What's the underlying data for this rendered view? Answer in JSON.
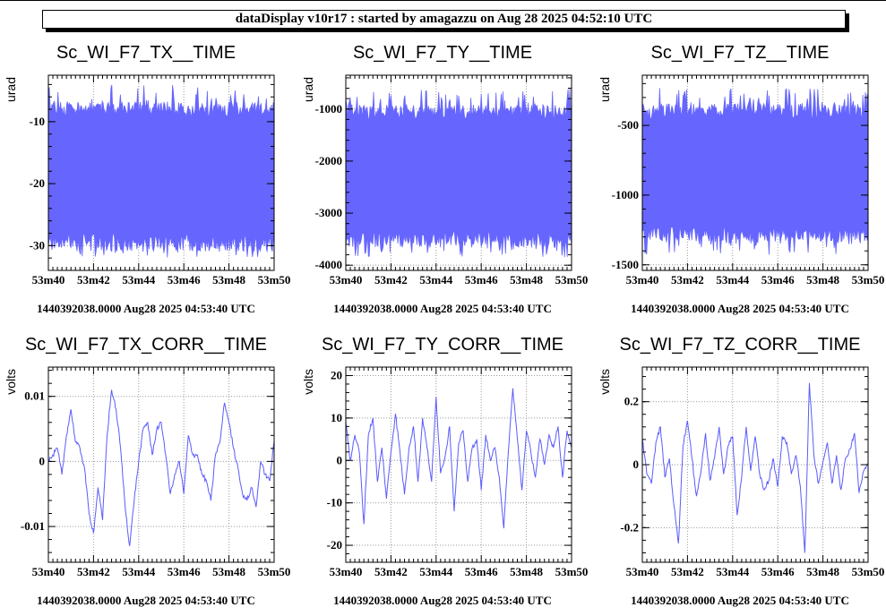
{
  "banner": {
    "text": "dataDisplay v10r17 : started by amagazzu on Aug 28 2025 04:52:10 UTC"
  },
  "colors": {
    "series": "#5b5bfd",
    "band_fill": "#6666ff",
    "grid": "#9a9a9a",
    "frame": "#000000"
  },
  "chart_data": [
    {
      "type": "area",
      "title": "Sc_WI_F7_TX__TIME",
      "ylabel": "urad",
      "xlabel": "",
      "x_tick_labels": [
        "53m40",
        "53m42",
        "53m44",
        "53m46",
        "53m48",
        "53m50"
      ],
      "y_ticks": [
        -30,
        -20,
        -10
      ],
      "y_tick_labels": [
        "-30",
        "-20",
        "-10"
      ],
      "ylim": [
        -34,
        -2.5
      ],
      "band": {
        "center": -18,
        "low": -29.5,
        "high": -8,
        "spike_low": -32,
        "spike_high": -4
      },
      "grid": true,
      "footer": "1440392038.0000 Aug28 2025 04:53:40 UTC"
    },
    {
      "type": "area",
      "title": "Sc_WI_F7_TY__TIME",
      "ylabel": "urad",
      "xlabel": "",
      "x_tick_labels": [
        "53m40",
        "53m42",
        "53m44",
        "53m46",
        "53m48",
        "53m50"
      ],
      "y_ticks": [
        -4000,
        -3000,
        -2000,
        -1000
      ],
      "y_tick_labels": [
        "-4000",
        "-3000",
        "-2000",
        "-1000"
      ],
      "ylim": [
        -4100,
        -350
      ],
      "band": {
        "center": -2200,
        "low": -3500,
        "high": -1050,
        "spike_low": -3850,
        "spike_high": -600
      },
      "grid": true,
      "footer": "1440392038.0000 Aug28 2025 04:53:40 UTC"
    },
    {
      "type": "area",
      "title": "Sc_WI_F7_TZ__TIME",
      "ylabel": "urad",
      "xlabel": "",
      "x_tick_labels": [
        "53m40",
        "53m42",
        "53m44",
        "53m46",
        "53m48",
        "53m50"
      ],
      "y_ticks": [
        -1500,
        -1000,
        -500
      ],
      "y_tick_labels": [
        "-1500",
        "-1000",
        "-500"
      ],
      "ylim": [
        -1540,
        -140
      ],
      "band": {
        "center": -850,
        "low": -1280,
        "high": -400,
        "spike_low": -1430,
        "spike_high": -230
      },
      "grid": true,
      "footer": "1440392038.0000 Aug28 2025 04:53:40 UTC"
    },
    {
      "type": "line",
      "title": "Sc_WI_F7_TX_CORR__TIME",
      "ylabel": "volts",
      "xlabel": "",
      "x_tick_labels": [
        "53m40",
        "53m42",
        "53m44",
        "53m46",
        "53m48",
        "53m50"
      ],
      "y_ticks": [
        -0.01,
        0,
        0.01
      ],
      "y_tick_labels": [
        "-0.01",
        "0",
        "0.01"
      ],
      "ylim": [
        -0.0155,
        0.0145
      ],
      "grid": true,
      "series": [
        {
          "x": [
            0,
            0.2,
            0.4,
            0.6,
            0.8,
            1,
            1.2,
            1.4,
            1.6,
            1.8,
            2,
            2.2,
            2.4,
            2.6,
            2.8,
            3,
            3.2,
            3.4,
            3.6,
            3.8,
            4,
            4.2,
            4.4,
            4.6,
            4.8,
            5,
            5.2,
            5.4,
            5.6,
            5.8,
            6,
            6.2,
            6.4,
            6.6,
            6.8,
            7,
            7.2,
            7.4,
            7.6,
            7.8,
            8,
            8.2,
            8.4,
            8.6,
            8.8,
            9,
            9.2,
            9.4,
            9.6,
            9.8,
            10
          ],
          "values": [
            0,
            0.001,
            0.002,
            -0.002,
            0.004,
            0.008,
            0.003,
            0.002,
            -0.001,
            -0.008,
            -0.011,
            -0.004,
            -0.009,
            0.004,
            0.011,
            0.008,
            0.002,
            -0.007,
            -0.013,
            -0.006,
            0,
            0.005,
            0.006,
            0.001,
            0.005,
            0.006,
            0.001,
            -0.005,
            -0.002,
            0,
            -0.005,
            0.004,
            0.001,
            0.001,
            -0.002,
            -0.003,
            -0.006,
            0.001,
            0.003,
            0.009,
            0.006,
            0.002,
            -0.001,
            -0.005,
            -0.006,
            -0.004,
            -0.007,
            0,
            -0.002,
            -0.003,
            0.003
          ]
        }
      ],
      "footer": "1440392038.0000 Aug28 2025 04:53:40 UTC"
    },
    {
      "type": "line",
      "title": "Sc_WI_F7_TY_CORR__TIME",
      "ylabel": "volts",
      "xlabel": "",
      "x_tick_labels": [
        "53m40",
        "53m42",
        "53m44",
        "53m46",
        "53m48",
        "53m50"
      ],
      "y_ticks": [
        -20,
        -10,
        0,
        10,
        20
      ],
      "y_tick_labels": [
        "-20",
        "-10",
        "0",
        "10",
        "20"
      ],
      "ylim": [
        -24,
        22
      ],
      "grid": true,
      "series": [
        {
          "x": [
            0,
            0.2,
            0.4,
            0.6,
            0.8,
            1,
            1.2,
            1.4,
            1.6,
            1.8,
            2,
            2.2,
            2.4,
            2.6,
            2.8,
            3,
            3.2,
            3.4,
            3.6,
            3.8,
            4,
            4.2,
            4.4,
            4.6,
            4.8,
            5,
            5.2,
            5.4,
            5.6,
            5.8,
            6,
            6.2,
            6.4,
            6.6,
            6.8,
            7,
            7.2,
            7.4,
            7.6,
            7.8,
            8,
            8.2,
            8.4,
            8.6,
            8.8,
            9,
            9.2,
            9.4,
            9.6,
            9.8,
            10
          ],
          "values": [
            9,
            0,
            6,
            2,
            -15,
            6,
            10,
            -5,
            3,
            -9,
            2,
            11,
            2,
            -8,
            3,
            8,
            -5,
            10,
            3,
            -5,
            15,
            -3,
            1,
            8,
            -12,
            4,
            7,
            -5,
            3,
            5,
            -7,
            6,
            0,
            3,
            -4,
            -16,
            2,
            17,
            5,
            -7,
            7,
            2,
            -4,
            5,
            -1,
            6,
            3,
            8,
            -4,
            7,
            3
          ]
        }
      ],
      "footer": "1440392038.0000 Aug28 2025 04:53:40 UTC"
    },
    {
      "type": "line",
      "title": "Sc_WI_F7_TZ_CORR__TIME",
      "ylabel": "volts",
      "xlabel": "",
      "x_tick_labels": [
        "53m40",
        "53m42",
        "53m44",
        "53m46",
        "53m48",
        "53m50"
      ],
      "y_ticks": [
        -0.2,
        0,
        0.2
      ],
      "y_tick_labels": [
        "-0.2",
        "0",
        "0.2"
      ],
      "ylim": [
        -0.31,
        0.31
      ],
      "grid": true,
      "series": [
        {
          "x": [
            0,
            0.2,
            0.4,
            0.6,
            0.8,
            1,
            1.2,
            1.4,
            1.6,
            1.8,
            2,
            2.2,
            2.4,
            2.6,
            2.8,
            3,
            3.2,
            3.4,
            3.6,
            3.8,
            4,
            4.2,
            4.4,
            4.6,
            4.8,
            5,
            5.2,
            5.4,
            5.6,
            5.8,
            6,
            6.2,
            6.4,
            6.6,
            6.8,
            7,
            7.2,
            7.4,
            7.6,
            7.8,
            8,
            8.2,
            8.4,
            8.6,
            8.8,
            9,
            9.2,
            9.4,
            9.6,
            9.8,
            10
          ],
          "values": [
            0.08,
            -0.03,
            -0.06,
            0.07,
            0.12,
            -0.04,
            0.02,
            -0.13,
            -0.25,
            0.06,
            0.14,
            0.02,
            -0.1,
            -0.02,
            0.1,
            -0.05,
            0.02,
            0.12,
            -0.03,
            0.06,
            0.09,
            -0.16,
            -0.04,
            0.12,
            -0.02,
            0.09,
            -0.03,
            -0.08,
            -0.05,
            0.02,
            -0.07,
            0.09,
            0.07,
            -0.03,
            0.03,
            -0.07,
            -0.28,
            0.26,
            0.03,
            -0.06,
            0.01,
            0.07,
            -0.06,
            0.03,
            -0.08,
            0.02,
            0.05,
            0.1,
            -0.09,
            -0.02,
            0
          ]
        }
      ],
      "footer": "1440392038.0000 Aug28 2025 04:53:40 UTC"
    }
  ]
}
